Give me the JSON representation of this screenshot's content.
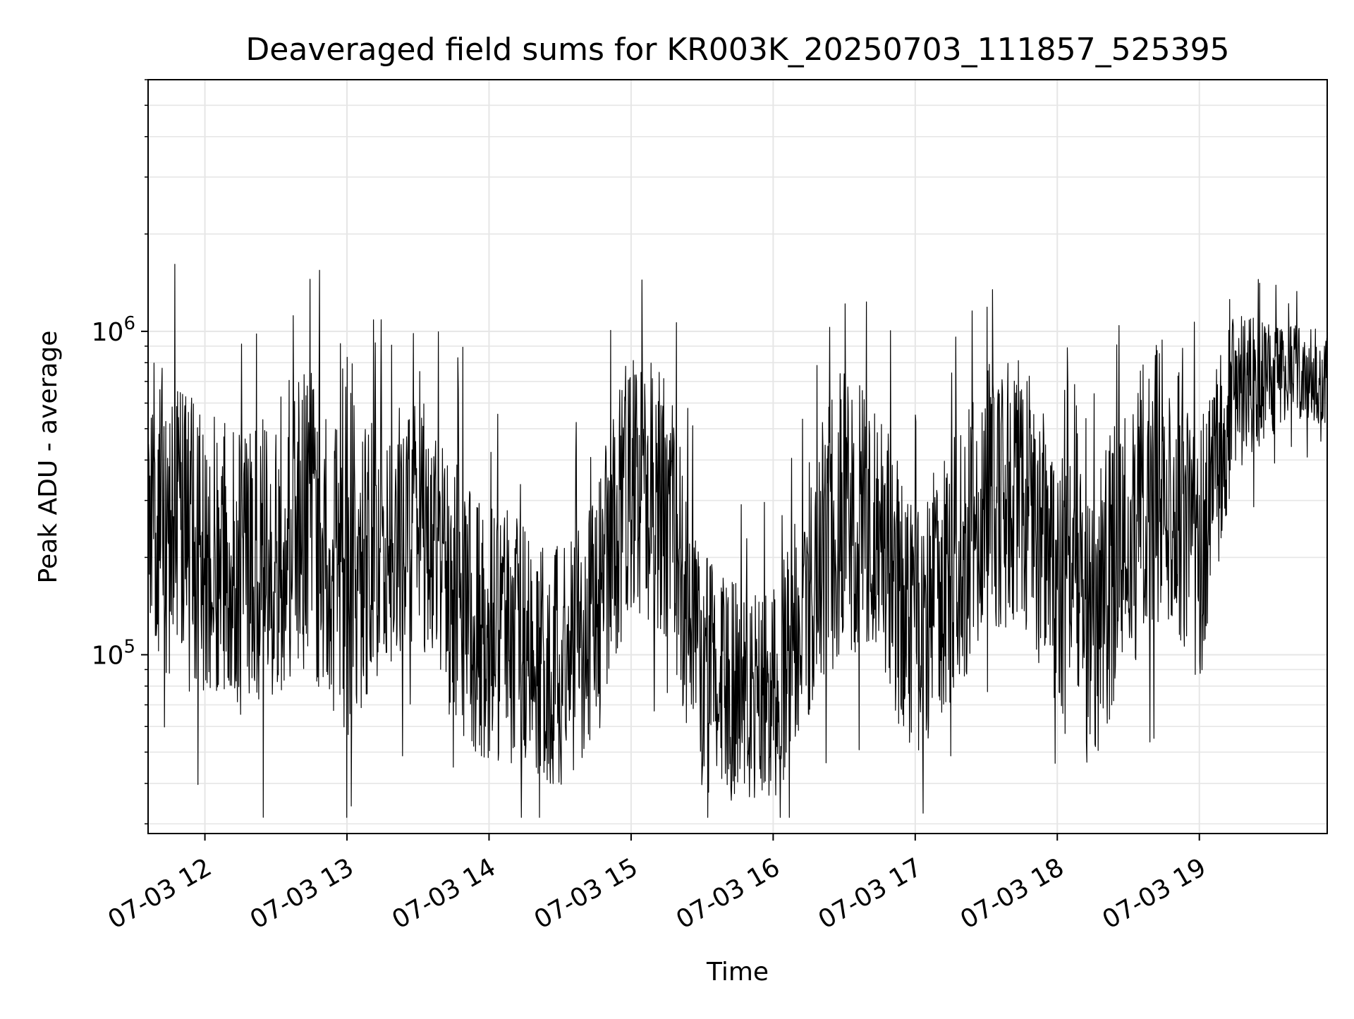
{
  "chart_data": {
    "type": "line",
    "title": "Deaveraged field sums for KR003K_20250703_111857_525395",
    "xlabel": "Time",
    "ylabel": "Peak ADU - average",
    "x_axis": {
      "kind": "datetime",
      "range": [
        "2025-07-03 11:36",
        "2025-07-03 19:54"
      ],
      "ticks": [
        "2025-07-03 12:00",
        "2025-07-03 13:00",
        "2025-07-03 14:00",
        "2025-07-03 15:00",
        "2025-07-03 16:00",
        "2025-07-03 17:00",
        "2025-07-03 18:00",
        "2025-07-03 19:00"
      ],
      "tick_labels": [
        "07-03 12",
        "07-03 13",
        "07-03 14",
        "07-03 15",
        "07-03 16",
        "07-03 17",
        "07-03 18",
        "07-03 19"
      ]
    },
    "y_axis": {
      "scale": "log",
      "range": [
        28000,
        6000000
      ],
      "ticks": [
        100000,
        1000000
      ],
      "tick_labels": [
        {
          "base": "10",
          "exp": "5"
        },
        {
          "base": "10",
          "exp": "6"
        }
      ]
    },
    "grid": true,
    "line_color": "#000000",
    "grid_color": "#e6e6e6",
    "series": [
      {
        "x": [
          "2025-07-03 11:36",
          "2025-07-03 11:45",
          "2025-07-03 12:00",
          "2025-07-03 12:15",
          "2025-07-03 12:30",
          "2025-07-03 12:45",
          "2025-07-03 13:00",
          "2025-07-03 13:15",
          "2025-07-03 13:30",
          "2025-07-03 13:45",
          "2025-07-03 14:00",
          "2025-07-03 14:15",
          "2025-07-03 14:30",
          "2025-07-03 14:45",
          "2025-07-03 15:00",
          "2025-07-03 15:15",
          "2025-07-03 15:30",
          "2025-07-03 15:45",
          "2025-07-03 16:00",
          "2025-07-03 16:15",
          "2025-07-03 16:30",
          "2025-07-03 16:45",
          "2025-07-03 17:00",
          "2025-07-03 17:15",
          "2025-07-03 17:30",
          "2025-07-03 17:45",
          "2025-07-03 18:00",
          "2025-07-03 18:15",
          "2025-07-03 18:30",
          "2025-07-03 18:45",
          "2025-07-03 19:00",
          "2025-07-03 19:15",
          "2025-07-03 19:30",
          "2025-07-03 19:45",
          "2025-07-03 19:54"
        ],
        "y": [
          300000,
          250000,
          200000,
          180000,
          230000,
          250000,
          150000,
          230000,
          300000,
          160000,
          120000,
          110000,
          90000,
          130000,
          350000,
          280000,
          90000,
          75000,
          75000,
          160000,
          300000,
          220000,
          120000,
          180000,
          300000,
          350000,
          160000,
          120000,
          250000,
          350000,
          200000,
          650000,
          700000,
          750000,
          700000
        ],
        "spread_factor": [
          3.0,
          3.0,
          2.8,
          2.8,
          3.0,
          3.0,
          2.8,
          2.6,
          2.6,
          2.8,
          2.6,
          2.4,
          2.4,
          2.6,
          2.6,
          2.6,
          2.4,
          2.2,
          2.2,
          2.6,
          2.8,
          2.6,
          2.6,
          2.6,
          2.6,
          2.8,
          2.8,
          2.8,
          2.8,
          2.8,
          2.6,
          1.8,
          1.5,
          1.4,
          1.4
        ]
      }
    ]
  }
}
